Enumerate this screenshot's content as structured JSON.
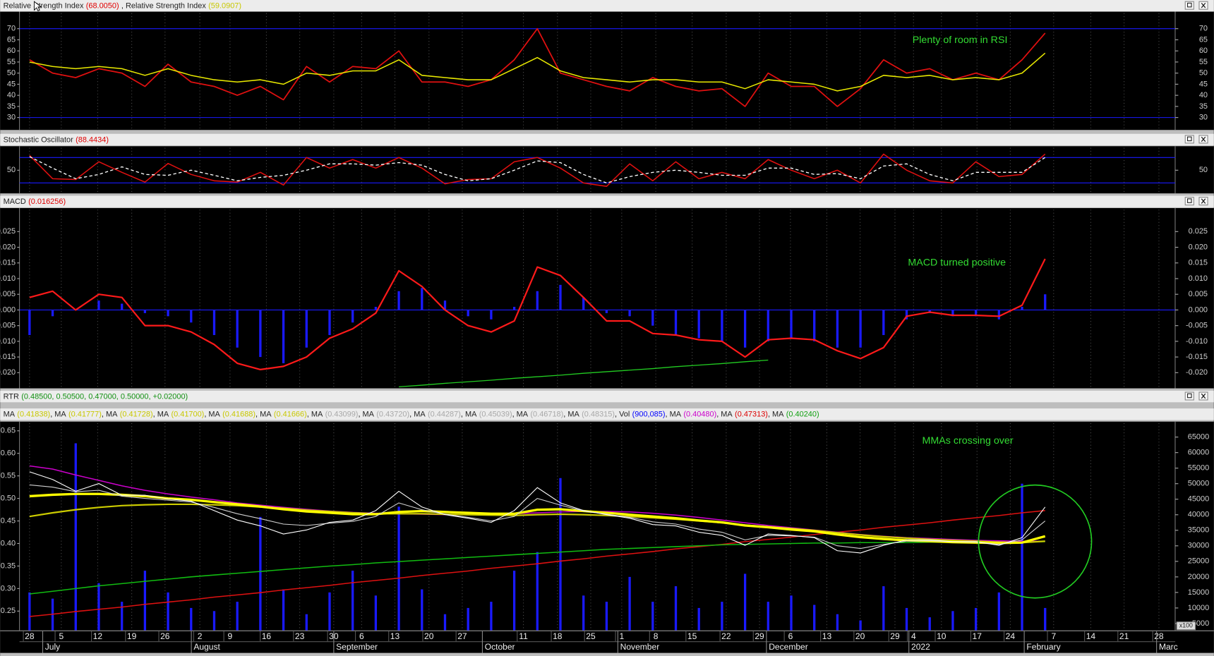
{
  "chart_data": [
    {
      "type": "line",
      "title": "Relative Strength Index",
      "title_value": "(68.0050)",
      "title_value_color": "#e00000",
      "title2": ", Relative Strength Index",
      "title2_value": "(59.0907)",
      "title2_value_color": "#c8c800",
      "annotation": "Plenty of room in RSI",
      "ylim": [
        24.4,
        77
      ],
      "yticks": [
        30,
        35,
        40,
        45,
        50,
        55,
        60,
        65,
        70
      ],
      "levels": [
        70,
        30
      ],
      "level_color": "#1a1aff",
      "series": [
        {
          "color": "#e01010",
          "values": [
            56,
            50,
            48,
            52,
            50,
            44,
            54,
            46,
            44,
            40,
            44,
            38,
            53,
            46,
            53,
            52,
            60,
            46,
            46,
            44,
            47,
            56,
            70,
            50,
            47,
            44,
            42,
            48,
            44,
            42,
            43,
            35,
            50,
            44,
            44,
            35,
            43,
            56,
            50,
            52,
            47,
            50,
            47,
            56,
            68
          ]
        },
        {
          "color": "#e8e800",
          "values": [
            55,
            53,
            52,
            53,
            52,
            49,
            52,
            49,
            47,
            46,
            47,
            45,
            50,
            49,
            51,
            51,
            56,
            49,
            48,
            47,
            47,
            52,
            57,
            51,
            48,
            47,
            46,
            47,
            47,
            46,
            46,
            43,
            47,
            46,
            45,
            42,
            44,
            49,
            48,
            49,
            47,
            48,
            47,
            50,
            59
          ]
        }
      ]
    },
    {
      "type": "line",
      "title": "Stochastic Oscillator",
      "title_value": "(88.4434)",
      "title_value_color": "#e00000",
      "ylim": [
        -4.7,
        103
      ],
      "yticks": [
        50
      ],
      "levels": [
        80,
        20
      ],
      "level_color": "#1a1aff",
      "series": [
        {
          "color": "#e01010",
          "values": [
            85,
            30,
            28,
            70,
            45,
            22,
            66,
            40,
            25,
            22,
            45,
            15,
            80,
            55,
            75,
            55,
            80,
            55,
            18,
            28,
            30,
            70,
            80,
            55,
            20,
            12,
            65,
            25,
            70,
            30,
            45,
            30,
            75,
            50,
            30,
            50,
            20,
            88,
            50,
            25,
            20,
            70,
            35,
            40,
            88
          ]
        },
        {
          "color": "#ffffff",
          "dash": true,
          "values": [
            82,
            55,
            30,
            40,
            58,
            40,
            38,
            50,
            38,
            25,
            33,
            38,
            50,
            65,
            65,
            62,
            68,
            62,
            40,
            25,
            30,
            50,
            72,
            68,
            40,
            20,
            35,
            45,
            50,
            45,
            38,
            38,
            55,
            55,
            40,
            42,
            30,
            60,
            65,
            40,
            25,
            45,
            45,
            45,
            80
          ]
        }
      ]
    },
    {
      "type": "line",
      "title": "MACD",
      "title_value": "(0.016256)",
      "title_value_color": "#e00000",
      "annotation": "MACD turned positive",
      "ylim": [
        -0.025,
        0.032
      ],
      "yticks": [
        0.025,
        {
          "value": 0.02,
          "label": "0.020"
        },
        0.015,
        {
          "value": 0.01,
          "label": "0.010"
        },
        0.005,
        {
          "value": 0,
          "label": "0.000"
        },
        -0.005,
        {
          "value": -0.01,
          "label": "-0.010"
        },
        -0.015,
        {
          "value": -0.02,
          "label": "-0.020"
        }
      ],
      "levels": [
        0
      ],
      "level_color": "#1a1aff",
      "series": [
        {
          "kind": "bar",
          "color": "#1a1aff",
          "values": [
            -0.008,
            -0.002,
            0,
            0.003,
            0.002,
            -0.001,
            -0.002,
            -0.004,
            -0.008,
            -0.012,
            -0.015,
            -0.017,
            -0.012,
            -0.008,
            -0.004,
            0.001,
            0.006,
            0.007,
            0.003,
            -0.002,
            -0.003,
            0.001,
            0.006,
            0.008,
            0.004,
            -0.001,
            -0.002,
            -0.005,
            -0.008,
            -0.009,
            -0.01,
            -0.012,
            -0.01,
            -0.009,
            -0.01,
            -0.012,
            -0.012,
            -0.008,
            -0.003,
            -0.001,
            -0.002,
            -0.002,
            -0.003,
            0.001,
            0.005
          ]
        },
        {
          "color": "#ff1a1a",
          "values": [
            0.004,
            0.006,
            0,
            0.005,
            0.004,
            -0.005,
            -0.005,
            -0.007,
            -0.011,
            -0.017,
            -0.019,
            -0.018,
            -0.015,
            -0.009,
            -0.006,
            -0.001,
            0.0125,
            0.0075,
            0,
            -0.005,
            -0.007,
            -0.0035,
            0.0137,
            0.011,
            0.004,
            -0.0035,
            -0.0035,
            -0.0075,
            -0.008,
            -0.0095,
            -0.01,
            -0.015,
            -0.0095,
            -0.009,
            -0.0095,
            -0.013,
            -0.0155,
            -0.012,
            -0.002,
            -0.0007,
            -0.0017,
            -0.0017,
            -0.002,
            0.0015,
            0.0163
          ]
        },
        {
          "color": "#22cc22",
          "values": [
            null,
            null,
            null,
            null,
            null,
            null,
            null,
            null,
            null,
            null,
            null,
            null,
            null,
            null,
            null,
            null,
            -0.0245,
            -0.024,
            -0.0234,
            -0.0229,
            -0.0224,
            -0.0218,
            -0.0213,
            -0.0208,
            -0.0202,
            -0.0197,
            -0.0192,
            -0.0187,
            -0.0181,
            -0.0176,
            -0.0171,
            -0.0165,
            -0.016,
            null,
            null,
            null,
            null,
            null,
            null,
            null,
            null,
            null,
            null,
            null,
            null
          ]
        }
      ]
    },
    {
      "type": "combo",
      "title": "RTR",
      "title_value": "(0.48500, 0.50500, 0.47000, 0.50000, +0.02000)",
      "title_value_color": "#109010",
      "legend_items": [
        {
          "label": "MA",
          "value": "(0.41838)",
          "color": "#c8c800"
        },
        {
          "label": ", MA",
          "value": "(0.41777)",
          "color": "#c8c800"
        },
        {
          "label": ", MA",
          "value": "(0.41728)",
          "color": "#c8c800"
        },
        {
          "label": ", MA",
          "value": "(0.41700)",
          "color": "#c8c800"
        },
        {
          "label": ", MA",
          "value": "(0.41688)",
          "color": "#c8c800"
        },
        {
          "label": ", MA",
          "value": "(0.41666)",
          "color": "#c8c800"
        },
        {
          "label": ", MA",
          "value": "(0.43099)",
          "color": "#a8a8a8"
        },
        {
          "label": ", MA",
          "value": "(0.43720)",
          "color": "#a8a8a8"
        },
        {
          "label": ", MA",
          "value": "(0.44287)",
          "color": "#a8a8a8"
        },
        {
          "label": ", MA",
          "value": "(0.45039)",
          "color": "#a8a8a8"
        },
        {
          "label": ", MA",
          "value": "(0.46718)",
          "color": "#a8a8a8"
        },
        {
          "label": ", MA",
          "value": "(0.48315)",
          "color": "#a8a8a8"
        },
        {
          "label": ", Vol",
          "value": "(900,085)",
          "color": "#0000ff"
        },
        {
          "label": ", MA",
          "value": "(0.40480)",
          "color": "#cc00cc"
        },
        {
          "label": ", MA",
          "value": "(0.47313)",
          "color": "#dd0000"
        },
        {
          "label": ", MA",
          "value": "(0.40240)",
          "color": "#10a010"
        }
      ],
      "annotation": "MMAs crossing over",
      "ylim": [
        0.207,
        0.667
      ],
      "yticks": [
        {
          "value": 0.25,
          "label": "0.25"
        },
        {
          "value": 0.3,
          "label": "0.30"
        },
        {
          "value": 0.35,
          "label": "0.35"
        },
        {
          "value": 0.4,
          "label": "0.40"
        },
        {
          "value": 0.45,
          "label": "0.45"
        },
        {
          "value": 0.5,
          "label": "0.50"
        },
        {
          "value": 0.55,
          "label": "0.55"
        },
        {
          "value": 0.6,
          "label": "0.60"
        },
        {
          "value": 0.65,
          "label": "0.65"
        }
      ],
      "y2lim": [
        2760,
        69480
      ],
      "y2ticks": [
        5000,
        10000,
        15000,
        20000,
        25000,
        30000,
        35000,
        40000,
        45000,
        50000,
        55000,
        60000,
        65000
      ],
      "y2_unit": "x100",
      "series": [
        {
          "kind": "bar",
          "axis": "y2",
          "color": "#1a1aff",
          "values": [
            15000,
            13000,
            63000,
            18000,
            12000,
            22000,
            15000,
            10000,
            9000,
            12000,
            39300,
            16000,
            8000,
            15000,
            22000,
            14000,
            42600,
            16000,
            8000,
            10000,
            12000,
            22000,
            28000,
            51800,
            14000,
            12000,
            20000,
            12000,
            17000,
            10000,
            12000,
            21000,
            12000,
            14000,
            11000,
            8000,
            6000,
            17000,
            10000,
            7000,
            9000,
            10000,
            15000,
            50000,
            10000
          ]
        },
        {
          "color": "#dd1111",
          "values": [
            0.238,
            0.243,
            0.249,
            0.254,
            0.259,
            0.265,
            0.27,
            0.275,
            0.281,
            0.286,
            0.291,
            0.297,
            0.302,
            0.307,
            0.313,
            0.318,
            0.323,
            0.329,
            0.334,
            0.339,
            0.345,
            0.35,
            0.355,
            0.361,
            0.366,
            0.372,
            0.377,
            0.382,
            0.388,
            0.393,
            0.398,
            0.404,
            0.409,
            0.414,
            0.42,
            0.425,
            0.43,
            0.436,
            0.441,
            0.446,
            0.452,
            0.457,
            0.462,
            0.468,
            0.473
          ]
        },
        {
          "color": "#11bb11",
          "values": [
            0.288,
            0.294,
            0.3,
            0.306,
            0.311,
            0.316,
            0.321,
            0.326,
            0.33,
            0.334,
            0.338,
            0.342,
            0.346,
            0.35,
            0.353,
            0.357,
            0.36,
            0.363,
            0.366,
            0.369,
            0.372,
            0.375,
            0.378,
            0.381,
            0.384,
            0.387,
            0.389,
            0.391,
            0.393,
            0.395,
            0.397,
            0.398,
            0.399,
            0.4,
            0.401,
            0.401,
            0.402,
            0.402,
            0.402,
            0.403,
            0.403,
            0.403,
            0.403,
            0.403,
            0.404
          ]
        },
        {
          "color": "#cc00cc",
          "values": [
            0.572,
            0.565,
            0.552,
            0.54,
            0.528,
            0.518,
            0.51,
            0.503,
            0.497,
            0.49,
            0.485,
            0.48,
            0.476,
            0.472,
            0.469,
            0.467,
            0.466,
            0.465,
            0.464,
            0.464,
            0.465,
            0.466,
            0.468,
            0.47,
            0.471,
            0.471,
            0.47,
            0.467,
            0.463,
            0.458,
            0.452,
            0.446,
            0.44,
            0.435,
            0.43,
            0.425,
            0.42,
            0.416,
            0.413,
            0.411,
            0.409,
            0.407,
            0.406,
            0.405,
            0.405
          ]
        },
        {
          "color": "#cccc00",
          "values": [
            0.46,
            0.468,
            0.475,
            0.48,
            0.484,
            0.486,
            0.487,
            0.487,
            0.486,
            0.484,
            0.481,
            0.478,
            0.474,
            0.471,
            0.468,
            0.466,
            0.466,
            0.466,
            0.465,
            0.464,
            0.463,
            0.462,
            0.464,
            0.465,
            0.464,
            0.462,
            0.46,
            0.457,
            0.454,
            0.45,
            0.446,
            0.441,
            0.437,
            0.433,
            0.429,
            0.424,
            0.419,
            0.415,
            0.412,
            0.409,
            0.407,
            0.405,
            0.403,
            0.402,
            0.405
          ]
        },
        {
          "color": "#ffff00",
          "values": [
            0.505,
            0.508,
            0.51,
            0.51,
            0.508,
            0.505,
            0.5,
            0.497,
            0.492,
            0.487,
            0.482,
            0.476,
            0.471,
            0.468,
            0.465,
            0.465,
            0.47,
            0.472,
            0.47,
            0.468,
            0.466,
            0.466,
            0.475,
            0.476,
            0.472,
            0.468,
            0.464,
            0.46,
            0.456,
            0.451,
            0.447,
            0.44,
            0.436,
            0.431,
            0.427,
            0.42,
            0.414,
            0.41,
            0.407,
            0.405,
            0.403,
            0.402,
            0.401,
            0.402,
            0.416
          ]
        },
        {
          "color": "#d0d0d0",
          "values": [
            0.53,
            0.525,
            0.515,
            0.518,
            0.505,
            0.5,
            0.496,
            0.492,
            0.48,
            0.466,
            0.455,
            0.443,
            0.44,
            0.445,
            0.449,
            0.46,
            0.49,
            0.475,
            0.465,
            0.458,
            0.45,
            0.46,
            0.5,
            0.485,
            0.472,
            0.465,
            0.458,
            0.448,
            0.443,
            0.432,
            0.425,
            0.408,
            0.418,
            0.417,
            0.414,
            0.395,
            0.389,
            0.398,
            0.405,
            0.406,
            0.404,
            0.403,
            0.398,
            0.408,
            0.45
          ]
        },
        {
          "color": "#ffffff",
          "values": [
            0.559,
            0.542,
            0.516,
            0.533,
            0.507,
            0.507,
            0.499,
            0.494,
            0.473,
            0.452,
            0.439,
            0.421,
            0.43,
            0.447,
            0.452,
            0.473,
            0.516,
            0.481,
            0.464,
            0.456,
            0.447,
            0.473,
            0.524,
            0.49,
            0.473,
            0.464,
            0.456,
            0.442,
            0.439,
            0.425,
            0.418,
            0.396,
            0.421,
            0.418,
            0.413,
            0.384,
            0.379,
            0.396,
            0.408,
            0.408,
            0.404,
            0.404,
            0.396,
            0.413,
            0.481
          ]
        }
      ]
    }
  ],
  "x_axis": {
    "day_labels": [
      "28",
      "5",
      "12",
      "19",
      "26",
      "2",
      "9",
      "16",
      "23",
      "30",
      "6",
      "13",
      "20",
      "27",
      "11",
      "18",
      "25",
      "1",
      "8",
      "15",
      "22",
      "29",
      "6",
      "13",
      "20",
      "29",
      "4",
      "10",
      "17",
      "24",
      "7",
      "14",
      "21",
      "28"
    ],
    "month_labels": [
      "July",
      "August",
      "September",
      "October",
      "November",
      "December",
      "2022",
      "February",
      "Marc"
    ]
  }
}
